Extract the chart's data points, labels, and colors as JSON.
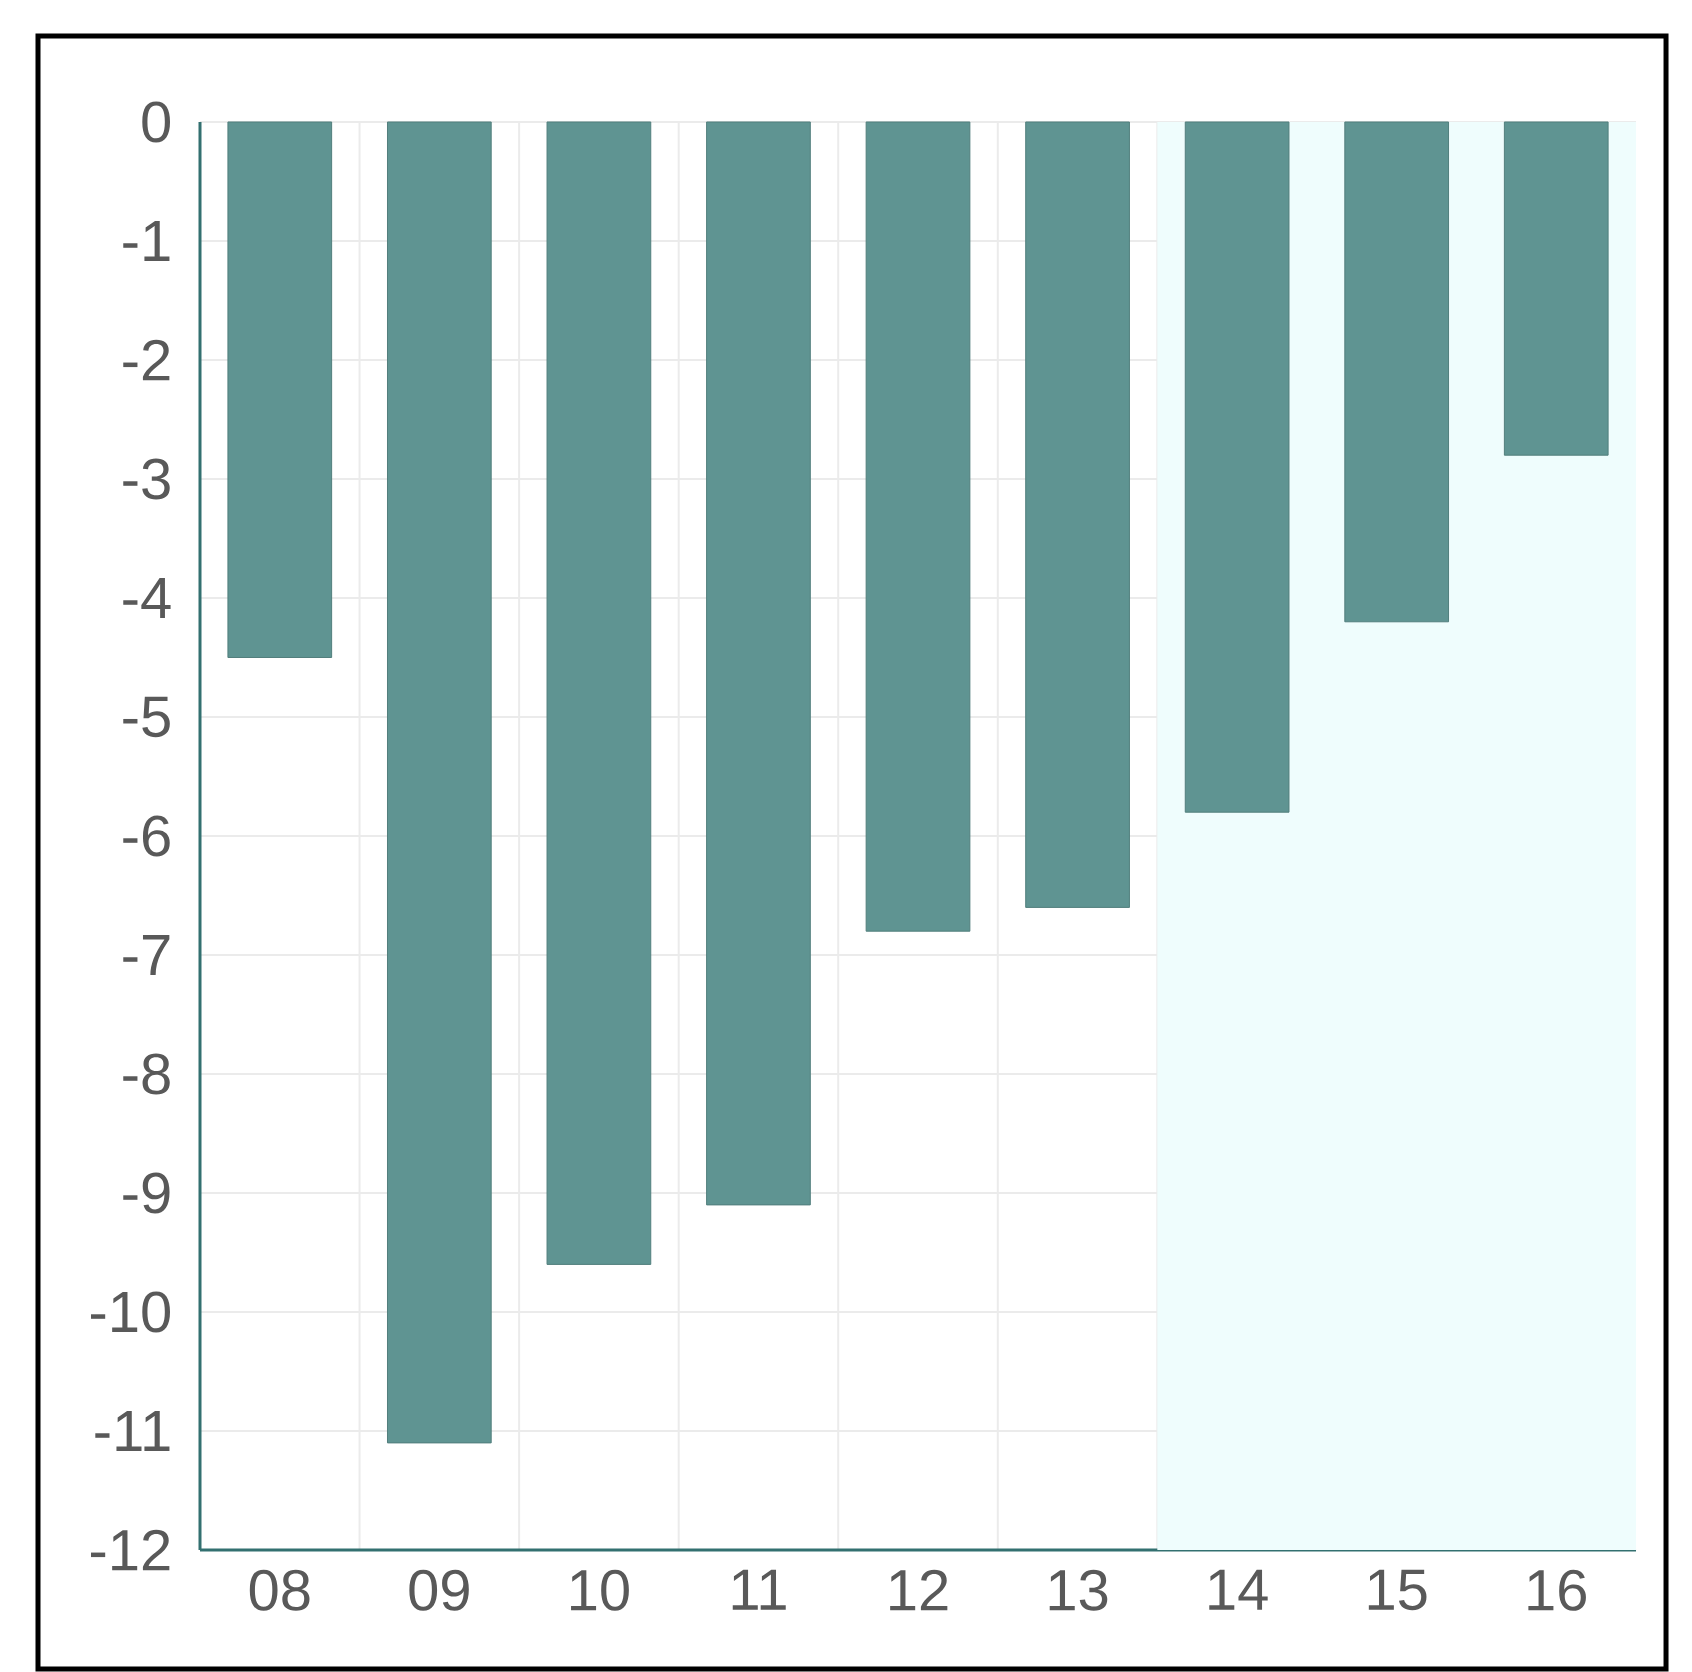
{
  "chart_data": {
    "type": "bar",
    "categories": [
      "08",
      "09",
      "10",
      "11",
      "12",
      "13",
      "14",
      "15",
      "16"
    ],
    "values": [
      -4.5,
      -11.1,
      -9.6,
      -9.1,
      -6.8,
      -6.6,
      -5.8,
      -4.2,
      -2.8
    ],
    "color": "#5f9492",
    "ylim": [
      -12,
      0
    ],
    "yticks": [
      0,
      -1,
      -2,
      -3,
      -4,
      -5,
      -6,
      -7,
      -8,
      -9,
      -10,
      -11,
      -12
    ],
    "grid": true,
    "bands": [
      {
        "axis": "x",
        "from": "14",
        "to": "16",
        "color": "#effdfd"
      }
    ]
  }
}
